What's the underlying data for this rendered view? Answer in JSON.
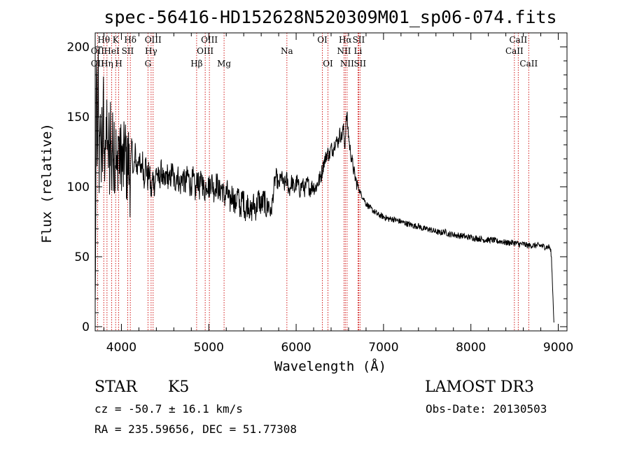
{
  "chart_data": {
    "type": "line",
    "title": "spec-56416-HD152628N520309M01_sp06-074.fits",
    "xlabel": "Wavelength (Å)",
    "ylabel": "Flux (relative)",
    "xlim": [
      3700,
      9100
    ],
    "ylim": [
      -3,
      210
    ],
    "xticks": [
      4000,
      5000,
      6000,
      7000,
      8000,
      9000
    ],
    "yticks": [
      0,
      50,
      100,
      150,
      200
    ],
    "x_minor_step": 200,
    "y_minor_step": 10,
    "series_points": [
      [
        3700,
        8
      ],
      [
        3715,
        190
      ],
      [
        3725,
        95
      ],
      [
        3735,
        185
      ],
      [
        3745,
        110
      ],
      [
        3755,
        165
      ],
      [
        3765,
        100
      ],
      [
        3775,
        150
      ],
      [
        3785,
        120
      ],
      [
        3795,
        160
      ],
      [
        3805,
        110
      ],
      [
        3815,
        145
      ],
      [
        3825,
        120
      ],
      [
        3835,
        155
      ],
      [
        3845,
        105
      ],
      [
        3855,
        140
      ],
      [
        3865,
        115
      ],
      [
        3875,
        150
      ],
      [
        3885,
        110
      ],
      [
        3895,
        135
      ],
      [
        3905,
        120
      ],
      [
        3915,
        145
      ],
      [
        3925,
        105
      ],
      [
        3935,
        130
      ],
      [
        3950,
        100
      ],
      [
        3965,
        140
      ],
      [
        3980,
        115
      ],
      [
        4000,
        125
      ],
      [
        4020,
        110
      ],
      [
        4040,
        130
      ],
      [
        4060,
        112
      ],
      [
        4080,
        120
      ],
      [
        4100,
        105
      ],
      [
        4120,
        130
      ],
      [
        4140,
        108
      ],
      [
        4160,
        125
      ],
      [
        4180,
        110
      ],
      [
        4200,
        125
      ],
      [
        4220,
        108
      ],
      [
        4240,
        120
      ],
      [
        4260,
        106
      ],
      [
        4280,
        118
      ],
      [
        4300,
        104
      ],
      [
        4320,
        112
      ],
      [
        4340,
        94
      ],
      [
        4360,
        108
      ],
      [
        4380,
        100
      ],
      [
        4400,
        112
      ],
      [
        4430,
        104
      ],
      [
        4460,
        112
      ],
      [
        4490,
        100
      ],
      [
        4520,
        110
      ],
      [
        4550,
        103
      ],
      [
        4580,
        112
      ],
      [
        4610,
        102
      ],
      [
        4640,
        110
      ],
      [
        4670,
        100
      ],
      [
        4700,
        108
      ],
      [
        4730,
        101
      ],
      [
        4760,
        109
      ],
      [
        4790,
        100
      ],
      [
        4820,
        106
      ],
      [
        4850,
        95
      ],
      [
        4870,
        108
      ],
      [
        4890,
        98
      ],
      [
        4920,
        106
      ],
      [
        4950,
        96
      ],
      [
        4980,
        104
      ],
      [
        5000,
        99
      ],
      [
        5030,
        105
      ],
      [
        5060,
        97
      ],
      [
        5090,
        103
      ],
      [
        5120,
        96
      ],
      [
        5150,
        100
      ],
      [
        5180,
        92
      ],
      [
        5210,
        97
      ],
      [
        5240,
        88
      ],
      [
        5270,
        96
      ],
      [
        5300,
        86
      ],
      [
        5330,
        95
      ],
      [
        5360,
        84
      ],
      [
        5390,
        93
      ],
      [
        5420,
        82
      ],
      [
        5450,
        90
      ],
      [
        5480,
        80
      ],
      [
        5510,
        88
      ],
      [
        5540,
        84
      ],
      [
        5570,
        92
      ],
      [
        5600,
        86
      ],
      [
        5630,
        91
      ],
      [
        5660,
        84
      ],
      [
        5690,
        88
      ],
      [
        5710,
        80
      ],
      [
        5730,
        90
      ],
      [
        5750,
        102
      ],
      [
        5770,
        108
      ],
      [
        5800,
        100
      ],
      [
        5830,
        108
      ],
      [
        5860,
        100
      ],
      [
        5890,
        106
      ],
      [
        5920,
        97
      ],
      [
        5950,
        104
      ],
      [
        5980,
        98
      ],
      [
        6010,
        104
      ],
      [
        6040,
        97
      ],
      [
        6070,
        102
      ],
      [
        6100,
        98
      ],
      [
        6130,
        103
      ],
      [
        6160,
        98
      ],
      [
        6190,
        101
      ],
      [
        6220,
        99
      ],
      [
        6250,
        103
      ],
      [
        6280,
        107
      ],
      [
        6300,
        112
      ],
      [
        6320,
        118
      ],
      [
        6340,
        121
      ],
      [
        6360,
        125
      ],
      [
        6380,
        122
      ],
      [
        6400,
        128
      ],
      [
        6420,
        126
      ],
      [
        6450,
        133
      ],
      [
        6480,
        132
      ],
      [
        6500,
        138
      ],
      [
        6520,
        135
      ],
      [
        6540,
        142
      ],
      [
        6560,
        128
      ],
      [
        6565,
        140
      ],
      [
        6580,
        152
      ],
      [
        6595,
        140
      ],
      [
        6610,
        130
      ],
      [
        6630,
        122
      ],
      [
        6650,
        115
      ],
      [
        6670,
        108
      ],
      [
        6690,
        103
      ],
      [
        6710,
        100
      ],
      [
        6740,
        95
      ],
      [
        6770,
        92
      ],
      [
        6800,
        88
      ],
      [
        6830,
        86
      ],
      [
        6860,
        84
      ],
      [
        6900,
        82
      ],
      [
        6940,
        80
      ],
      [
        6980,
        79
      ],
      [
        7020,
        78
      ],
      [
        7060,
        77
      ],
      [
        7100,
        77
      ],
      [
        7150,
        76
      ],
      [
        7200,
        75
      ],
      [
        7250,
        74
      ],
      [
        7300,
        73
      ],
      [
        7350,
        72
      ],
      [
        7400,
        72
      ],
      [
        7450,
        70
      ],
      [
        7500,
        70
      ],
      [
        7550,
        69
      ],
      [
        7600,
        68
      ],
      [
        7650,
        67
      ],
      [
        7700,
        68
      ],
      [
        7750,
        66
      ],
      [
        7800,
        66
      ],
      [
        7850,
        65
      ],
      [
        7900,
        65
      ],
      [
        7950,
        64
      ],
      [
        8000,
        64
      ],
      [
        8050,
        63
      ],
      [
        8100,
        63
      ],
      [
        8150,
        62
      ],
      [
        8200,
        62
      ],
      [
        8250,
        62
      ],
      [
        8300,
        61
      ],
      [
        8350,
        61
      ],
      [
        8400,
        60
      ],
      [
        8450,
        60
      ],
      [
        8500,
        60
      ],
      [
        8550,
        59
      ],
      [
        8600,
        59
      ],
      [
        8650,
        58
      ],
      [
        8700,
        58
      ],
      [
        8750,
        58
      ],
      [
        8800,
        58
      ],
      [
        8850,
        57
      ],
      [
        8900,
        57
      ],
      [
        8920,
        52
      ],
      [
        8940,
        20
      ],
      [
        8950,
        3
      ]
    ],
    "noise_segments": [
      {
        "from": 3700,
        "to": 4100,
        "amp": 28
      },
      {
        "from": 4100,
        "to": 5700,
        "amp": 9
      },
      {
        "from": 5700,
        "to": 6300,
        "amp": 6
      },
      {
        "from": 6300,
        "to": 6700,
        "amp": 5
      },
      {
        "from": 6700,
        "to": 8950,
        "amp": 2.2
      }
    ],
    "spectral_lines": [
      {
        "label": "Hθ",
        "x": 3798,
        "row": 1
      },
      {
        "label": "OII",
        "x": 3727,
        "row": 2
      },
      {
        "label": "OII",
        "x": 3727,
        "row": 3
      },
      {
        "label": "Hη",
        "x": 3835,
        "row": 3
      },
      {
        "label": "HeI",
        "x": 3889,
        "row": 2
      },
      {
        "label": "K",
        "x": 3934,
        "row": 1
      },
      {
        "label": "SII",
        "x": 4072,
        "row": 2
      },
      {
        "label": "H",
        "x": 3969,
        "row": 3
      },
      {
        "label": "Hδ",
        "x": 4102,
        "row": 1
      },
      {
        "label": "OIII",
        "x": 4363,
        "row": 1
      },
      {
        "label": "Hγ",
        "x": 4340,
        "row": 2
      },
      {
        "label": "G",
        "x": 4304,
        "row": 3
      },
      {
        "label": "Hβ",
        "x": 4861,
        "row": 3
      },
      {
        "label": "OIII",
        "x": 5007,
        "row": 1
      },
      {
        "label": "OIII",
        "x": 4959,
        "row": 2
      },
      {
        "label": "Mg",
        "x": 5175,
        "row": 3
      },
      {
        "label": "Na",
        "x": 5894,
        "row": 2
      },
      {
        "label": "OI",
        "x": 6300,
        "row": 1
      },
      {
        "label": "OI",
        "x": 6364,
        "row": 3
      },
      {
        "label": "Hα",
        "x": 6563,
        "row": 1
      },
      {
        "label": "SII",
        "x": 6716,
        "row": 1
      },
      {
        "label": "NII",
        "x": 6548,
        "row": 2
      },
      {
        "label": "Li",
        "x": 6708,
        "row": 2
      },
      {
        "label": "NII",
        "x": 6583,
        "row": 3
      },
      {
        "label": "SII",
        "x": 6731,
        "row": 3
      },
      {
        "label": "CaII",
        "x": 8542,
        "row": 1
      },
      {
        "label": "CaII",
        "x": 8498,
        "row": 2
      },
      {
        "label": "CaII",
        "x": 8662,
        "row": 3
      }
    ],
    "line_color": "#000000",
    "marker_color": "#cc0000"
  },
  "info": {
    "object_class": "STAR",
    "subclass": "K5",
    "survey": "LAMOST DR3",
    "cz": "cz = -50.7 ± 16.1 km/s",
    "obs_date": "Obs-Date: 20130503",
    "coords": "RA = 235.59656, DEC =  51.77308"
  }
}
